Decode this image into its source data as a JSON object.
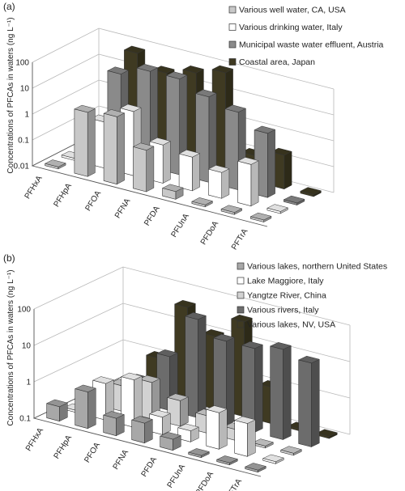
{
  "chart_data": [
    {
      "type": "bar",
      "panel_label": "(a)",
      "ylabel": "Concentrations of PFCAs in waters (ng L⁻¹)",
      "scale": "log",
      "ytick_labels": [
        "0.01",
        "0.1",
        "1",
        "10",
        "100"
      ],
      "ylim": [
        0.01,
        100
      ],
      "categories": [
        "PFHxA",
        "PFHpA",
        "PFOA",
        "PFNA",
        "PFDA",
        "PFUnA",
        "PFDoA",
        "PFTrA"
      ],
      "series": [
        {
          "name": "Various well water, CA, USA",
          "color": "#c8c8c8",
          "values": [
            0.01,
            3,
            4,
            0.4,
            0.02,
            0.01,
            0.01,
            0.01
          ]
        },
        {
          "name": "Various drinking water, Italy",
          "color": "#ffffff",
          "values": [
            0.01,
            0.6,
            3,
            0.3,
            0.2,
            0.1,
            0.4,
            0.01
          ]
        },
        {
          "name": "Municipal waste water effluent, Austria",
          "color": "#8a8a8a",
          "values": [
            0.01,
            20,
            50,
            50,
            20,
            10,
            3,
            0.01
          ]
        },
        {
          "name": "Coastal area, Japan",
          "color": "#3f3a22",
          "values": [
            0.01,
            60,
            20,
            40,
            80,
            0.1,
            0.2,
            0.01
          ]
        }
      ]
    },
    {
      "type": "bar",
      "panel_label": "(b)",
      "ylabel": "Concentrations of PFCAs in waters (ng L⁻¹)",
      "scale": "log",
      "ytick_labels": [
        "0.1",
        "1",
        "10",
        "100"
      ],
      "ylim": [
        0.1,
        100
      ],
      "categories": [
        "PFHxA",
        "PFHpA",
        "PFOA",
        "PFNA",
        "PFDA",
        "PFUnA",
        "PFDoA",
        "PFTrA"
      ],
      "series": [
        {
          "name": "Various lakes, northern United States",
          "color": "#a8a8a8",
          "values": [
            0.25,
            1,
            0.3,
            0.35,
            0.2,
            0.1,
            0.1,
            0.1
          ]
        },
        {
          "name": "Lake Maggiore, Italy",
          "color": "#ffffff",
          "values": [
            0.1,
            1,
            2,
            0.3,
            0.2,
            1,
            0.8,
            0.1
          ]
        },
        {
          "name": "Yangtze River, China",
          "color": "#d2d2d2",
          "values": [
            0.1,
            0.5,
            1,
            0.5,
            0.3,
            0.2,
            0.1,
            0.1
          ]
        },
        {
          "name": "Various rivers, Italy",
          "color": "#6c6c6c",
          "values": [
            0.1,
            0.4,
            3,
            50,
            20,
            20,
            30,
            20
          ]
        },
        {
          "name": "Various lakes, NV, USA",
          "color": "#3f3a22",
          "values": [
            0.1,
            1,
            40,
            10,
            40,
            1,
            0.1,
            0.1
          ]
        }
      ]
    }
  ]
}
